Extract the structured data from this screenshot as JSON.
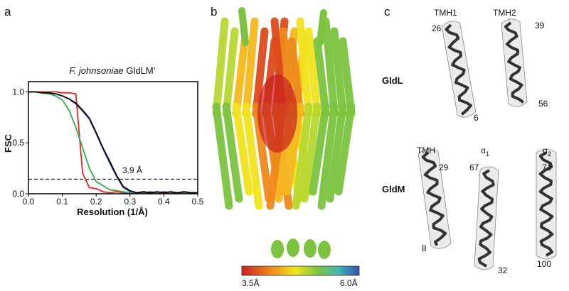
{
  "panel_labels": {
    "a": "a",
    "b": "b",
    "c": "c"
  },
  "chart_data": {
    "type": "line",
    "title": {
      "species": "F. johnsoniae",
      "protein": " GldLM’"
    },
    "x_label": "Resolution (1/Å)",
    "y_label": "FSC",
    "xlim": [
      0,
      0.5
    ],
    "ylim": [
      0,
      1.1
    ],
    "xticks": [
      {
        "value": 0,
        "label": "0.0"
      },
      0.1,
      0.2,
      0.3,
      0.4,
      0.5
    ],
    "yticks": [
      {
        "value": 0,
        "label": "0.0"
      },
      0.5,
      {
        "value": 1,
        "label": "1.0"
      }
    ],
    "x": [
      0,
      0.02,
      0.04,
      0.06,
      0.08,
      0.1,
      0.12,
      0.14,
      0.16,
      0.18,
      0.2,
      0.22,
      0.24,
      0.26,
      0.28,
      0.3,
      0.32,
      0.34,
      0.36,
      0.38,
      0.4,
      0.42,
      0.44,
      0.46,
      0.48,
      0.5
    ],
    "series": [
      {
        "color": "#e8251f",
        "values": [
          1,
          1,
          1,
          1,
          1,
          0.99,
          0.99,
          0.98,
          0.2,
          0.06,
          0.05,
          0.02,
          0.01,
          0.02,
          0.01,
          0.01,
          0.01,
          0.01,
          0.01,
          0.01,
          0.01,
          0.01,
          0.01,
          0.01,
          0.01,
          0.01
        ]
      },
      {
        "color": "#2fae4a",
        "values": [
          1,
          1,
          0.99,
          0.98,
          0.96,
          0.92,
          0.82,
          0.65,
          0.45,
          0.25,
          0.12,
          0.08,
          0.04,
          0.03,
          0.02,
          0.01,
          0.01,
          0.02,
          0.01,
          0.01,
          0.02,
          0.01,
          0.01,
          0.01,
          0.01,
          0.01
        ]
      },
      {
        "color": "#4a6fc0",
        "values": [
          1,
          1,
          0.99,
          0.99,
          0.98,
          0.96,
          0.93,
          0.88,
          0.81,
          0.73,
          0.59,
          0.44,
          0.3,
          0.17,
          0.06,
          0.02,
          0.01,
          0.01,
          0.02,
          0.01,
          0.02,
          0.01,
          0.01,
          0.02,
          0.01,
          0.01
        ]
      },
      {
        "color": "#000000",
        "values": [
          1,
          1,
          0.99,
          0.99,
          0.98,
          0.96,
          0.93,
          0.89,
          0.82,
          0.74,
          0.6,
          0.45,
          0.32,
          0.18,
          0.07,
          0.03,
          0.01,
          0.02,
          0.01,
          0.02,
          0.01,
          0.02,
          0.01,
          0.02,
          0.01,
          0.01
        ]
      }
    ],
    "threshold": 0.143,
    "annotation": "3.9 Å"
  },
  "colorbar": {
    "min_label": "3.5Å",
    "max_label": "6.0Å"
  },
  "gldl": {
    "label": "GldL",
    "tmh1": "TMH1",
    "tmh2": "TMH2",
    "tmh1_start": "26",
    "tmh1_end": "6",
    "tmh2_start": "39",
    "tmh2_end": "56"
  },
  "gldm": {
    "label": "GldM",
    "tmh": "TMH",
    "alpha1": {
      "base": "α",
      "sub": "1"
    },
    "alpha2": {
      "base": "α",
      "sub": "2"
    },
    "tmh_start": "29",
    "tmh_end": "8",
    "alpha1_start": "67",
    "alpha1_end": "32",
    "alpha2_start": "71",
    "alpha2_end": "100"
  }
}
